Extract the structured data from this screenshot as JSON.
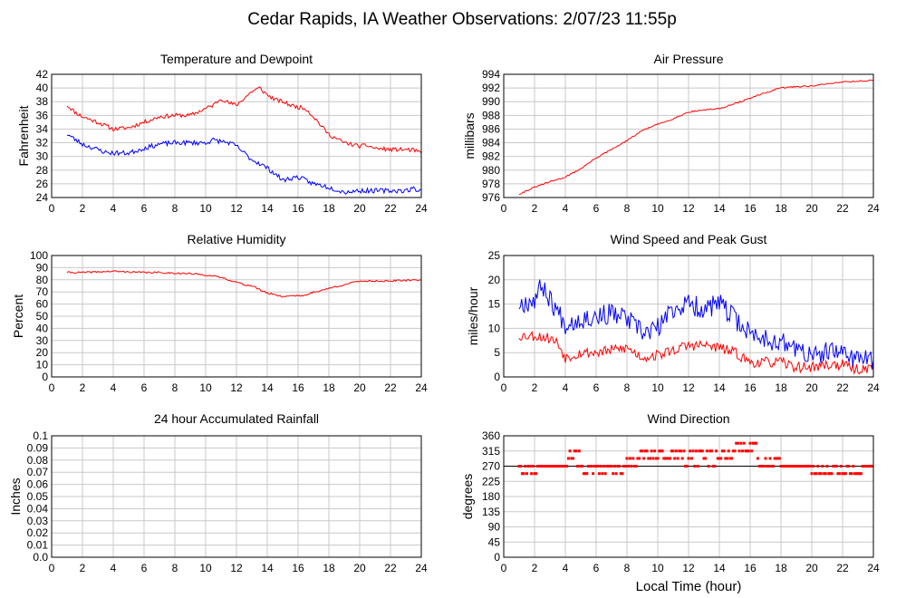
{
  "title": "Cedar Rapids, IA Weather Observations: 2/07/23 11:55p",
  "xlabel": "Local Time (hour)",
  "colors": {
    "primary": "#ff0000",
    "secondary": "#0000ff",
    "grid": "#c8c8c8",
    "axis": "#000000"
  },
  "chart_data": [
    {
      "id": "temp",
      "type": "line",
      "title": "Temperature and Dewpoint",
      "ylabel": "Fahrenheit",
      "xlim": [
        0,
        24
      ],
      "xticks": [
        2,
        4,
        6,
        8,
        10,
        12,
        14,
        16,
        18,
        20,
        22,
        24
      ],
      "ylim": [
        24,
        42
      ],
      "yticks": [
        24,
        26,
        28,
        30,
        32,
        34,
        36,
        38,
        40,
        42
      ],
      "series": [
        {
          "color": "#ff0000",
          "noise": 0.3,
          "seed": 11,
          "x": [
            1.0,
            1.5,
            2.0,
            3.0,
            4.0,
            5.0,
            6.0,
            7.0,
            8.0,
            9.0,
            10.0,
            10.5,
            11.0,
            11.5,
            12.0,
            12.5,
            13.0,
            13.5,
            14.0,
            14.5,
            15.0,
            15.5,
            16.0,
            16.5,
            17.0,
            17.5,
            18.0,
            19.0,
            20.0,
            20.5,
            21.0,
            22.0,
            23.0,
            23.5,
            24.0
          ],
          "y": [
            37.5,
            36.5,
            35.8,
            35.0,
            34.0,
            34.2,
            35.0,
            35.8,
            36.0,
            36.0,
            37.0,
            37.5,
            38.5,
            37.8,
            37.5,
            38.5,
            39.5,
            40.0,
            39.0,
            38.3,
            38.0,
            37.5,
            37.2,
            37.0,
            35.8,
            34.5,
            33.2,
            32.0,
            31.5,
            31.6,
            31.2,
            31.0,
            31.0,
            30.9,
            30.5
          ]
        },
        {
          "color": "#0000ff",
          "noise": 0.35,
          "seed": 23,
          "x": [
            1.0,
            1.5,
            2.0,
            3.0,
            3.5,
            4.0,
            5.0,
            6.0,
            7.0,
            8.0,
            9.0,
            10.0,
            10.5,
            11.0,
            11.5,
            12.0,
            12.5,
            13.0,
            13.5,
            14.0,
            14.5,
            15.0,
            15.5,
            16.0,
            16.5,
            17.0,
            17.5,
            18.0,
            19.0,
            20.0,
            21.0,
            22.0,
            23.0,
            23.5,
            24.0
          ],
          "y": [
            33.3,
            32.5,
            31.8,
            31.0,
            30.6,
            30.5,
            30.5,
            31.2,
            31.8,
            32.0,
            32.0,
            32.0,
            32.4,
            32.2,
            32.0,
            31.5,
            30.5,
            29.5,
            29.0,
            28.3,
            27.5,
            26.5,
            26.8,
            27.0,
            26.5,
            26.0,
            25.8,
            25.5,
            24.8,
            25.0,
            25.0,
            25.0,
            25.0,
            25.3,
            25.0
          ]
        }
      ]
    },
    {
      "id": "pressure",
      "type": "line",
      "title": "Air Pressure",
      "ylabel": "millibars",
      "xlim": [
        0,
        24
      ],
      "xticks": [
        2,
        4,
        6,
        8,
        10,
        12,
        14,
        16,
        18,
        20,
        22,
        24
      ],
      "ylim": [
        976,
        994
      ],
      "yticks": [
        976,
        978,
        980,
        982,
        984,
        986,
        988,
        990,
        992,
        994
      ],
      "series": [
        {
          "color": "#ff0000",
          "noise": 0.1,
          "seed": 31,
          "x": [
            1.0,
            2.0,
            3.0,
            4.0,
            5.0,
            6.0,
            7.0,
            8.0,
            9.0,
            10.0,
            11.0,
            12.0,
            13.0,
            14.0,
            15.0,
            16.0,
            17.0,
            18.0,
            19.0,
            20.0,
            21.0,
            22.0,
            23.0,
            24.0
          ],
          "y": [
            976.5,
            977.5,
            978.3,
            979.0,
            980.2,
            981.8,
            983.0,
            984.3,
            985.8,
            986.7,
            987.5,
            988.5,
            988.8,
            989.0,
            989.7,
            990.5,
            991.3,
            992.0,
            992.2,
            992.3,
            992.6,
            992.9,
            993.0,
            993.1
          ]
        }
      ]
    },
    {
      "id": "humidity",
      "type": "line",
      "title": "Relative Humidity",
      "ylabel": "Percent",
      "xlim": [
        0,
        24
      ],
      "xticks": [
        2,
        4,
        6,
        8,
        10,
        12,
        14,
        16,
        18,
        20,
        22,
        24
      ],
      "ylim": [
        0,
        100
      ],
      "yticks": [
        0,
        10,
        20,
        30,
        40,
        50,
        60,
        70,
        80,
        90,
        100
      ],
      "series": [
        {
          "color": "#ff0000",
          "noise": 0.7,
          "seed": 41,
          "x": [
            1.0,
            2.0,
            3.0,
            4.0,
            5.0,
            6.0,
            7.0,
            8.0,
            9.0,
            10.0,
            10.5,
            11.0,
            11.5,
            12.0,
            12.5,
            13.0,
            13.5,
            14.0,
            14.5,
            15.0,
            15.5,
            16.0,
            16.5,
            17.0,
            17.5,
            18.0,
            19.0,
            20.0,
            21.0,
            22.0,
            23.0,
            24.0
          ],
          "y": [
            86,
            86,
            86.5,
            87,
            86.5,
            86,
            86,
            85.5,
            85,
            84,
            83,
            82,
            80,
            78,
            76,
            75,
            72,
            69,
            68,
            66,
            67,
            67,
            67,
            70,
            71,
            73,
            76,
            79,
            79,
            79,
            79.5,
            80
          ]
        }
      ]
    },
    {
      "id": "wind",
      "type": "line",
      "title": "Wind Speed and Peak Gust",
      "ylabel": "miles/hour",
      "xlim": [
        0,
        24
      ],
      "xticks": [
        2,
        4,
        6,
        8,
        10,
        12,
        14,
        16,
        18,
        20,
        22,
        24
      ],
      "ylim": [
        0,
        25
      ],
      "yticks": [
        0,
        5,
        10,
        15,
        20,
        25
      ],
      "series": [
        {
          "color": "#ff0000",
          "noise": 1.1,
          "seed": 53,
          "x": [
            1.0,
            2.0,
            3.0,
            3.5,
            4.0,
            5.0,
            6.0,
            7.0,
            8.0,
            9.0,
            10.0,
            11.0,
            12.0,
            13.0,
            14.0,
            15.0,
            16.0,
            17.0,
            18.0,
            19.0,
            20.0,
            21.0,
            22.0,
            23.0,
            24.0
          ],
          "y": [
            8.5,
            8.5,
            8.0,
            7.0,
            4.0,
            5.0,
            5.0,
            5.5,
            6.0,
            4.0,
            4.5,
            5.5,
            6.5,
            6.5,
            6.0,
            5.0,
            3.0,
            3.0,
            3.0,
            2.0,
            2.0,
            2.5,
            2.5,
            1.5,
            2.0
          ]
        },
        {
          "color": "#0000ff",
          "noise": 2.2,
          "seed": 67,
          "x": [
            1.0,
            2.0,
            2.5,
            3.0,
            4.0,
            5.0,
            6.0,
            7.0,
            8.0,
            9.0,
            10.0,
            11.0,
            12.0,
            13.0,
            14.0,
            15.0,
            16.0,
            17.0,
            18.0,
            19.0,
            20.0,
            21.0,
            22.0,
            23.0,
            24.0
          ],
          "y": [
            15,
            16,
            19,
            16,
            11,
            12,
            12.5,
            13,
            12,
            9,
            10,
            14,
            15,
            14,
            15,
            12,
            9,
            8,
            7,
            6,
            4,
            5,
            5,
            4,
            3
          ]
        }
      ]
    },
    {
      "id": "rain",
      "type": "line",
      "title": "24 hour Accumulated Rainfall",
      "ylabel": "Inches",
      "xlim": [
        0,
        24
      ],
      "xticks": [
        2,
        4,
        6,
        8,
        10,
        12,
        14,
        16,
        18,
        20,
        22,
        24
      ],
      "ylim": [
        0,
        0.1
      ],
      "yticks": [
        0,
        0.01,
        0.02,
        0.03,
        0.04,
        0.05,
        0.06,
        0.07,
        0.08,
        0.09,
        0.1
      ],
      "ytick_labels": [
        "0.0",
        "0.01",
        "0.02",
        "0.03",
        "0.04",
        "0.05",
        "0.06",
        "0.07",
        "0.08",
        "0.09",
        "0.1"
      ],
      "series": [
        {
          "color": "#ff0000",
          "noise": 0,
          "seed": 1,
          "x": [
            0,
            24
          ],
          "y": [
            0,
            0
          ]
        }
      ]
    },
    {
      "id": "winddir",
      "type": "scatter",
      "title": "Wind Direction",
      "ylabel": "degrees",
      "xlim": [
        0,
        24
      ],
      "xticks": [
        2,
        4,
        6,
        8,
        10,
        12,
        14,
        16,
        18,
        20,
        22,
        24
      ],
      "ylim": [
        0,
        360
      ],
      "yticks": [
        0,
        45,
        90,
        135,
        180,
        225,
        270,
        315,
        360
      ],
      "ref_line": 270,
      "series": [
        {
          "color": "#ff0000",
          "step": 0.1,
          "seed": 79,
          "segments": [
            {
              "from": 1.0,
              "to": 2.2,
              "values": [
                270,
                248
              ]
            },
            {
              "from": 2.2,
              "to": 4.2,
              "values": [
                270
              ]
            },
            {
              "from": 4.2,
              "to": 5.0,
              "values": [
                315,
                293,
                270
              ]
            },
            {
              "from": 5.0,
              "to": 8.0,
              "values": [
                270,
                248
              ]
            },
            {
              "from": 8.0,
              "to": 8.7,
              "values": [
                293,
                270
              ]
            },
            {
              "from": 8.7,
              "to": 11.0,
              "values": [
                315,
                293
              ]
            },
            {
              "from": 11.0,
              "to": 15.0,
              "values": [
                315,
                293,
                270
              ]
            },
            {
              "from": 15.0,
              "to": 16.5,
              "values": [
                338,
                315
              ]
            },
            {
              "from": 16.5,
              "to": 18.0,
              "values": [
                293,
                270
              ]
            },
            {
              "from": 18.0,
              "to": 20.0,
              "values": [
                270
              ]
            },
            {
              "from": 20.0,
              "to": 24.0,
              "values": [
                248,
                270
              ]
            }
          ]
        }
      ]
    }
  ]
}
